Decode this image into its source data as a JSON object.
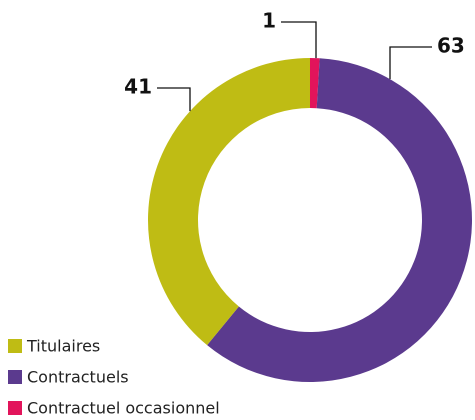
{
  "chart_data": {
    "type": "donut",
    "categories": [
      "Titulaires",
      "Contractuels",
      "Contractuel occasionnel"
    ],
    "values": [
      41,
      63,
      1
    ],
    "colors": [
      "#bfbc14",
      "#5b3a8e",
      "#e2145b"
    ]
  }
}
